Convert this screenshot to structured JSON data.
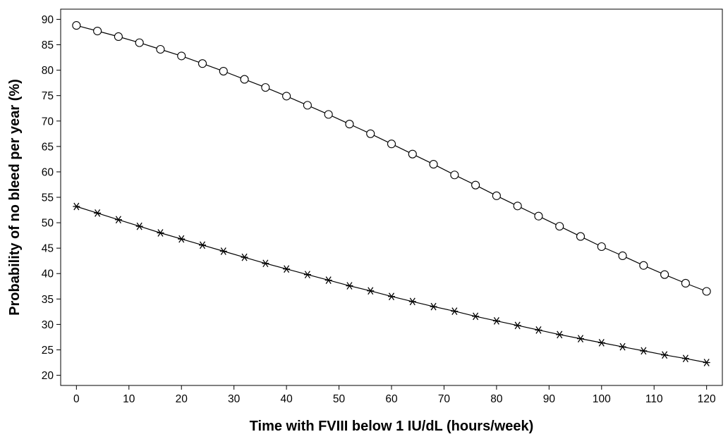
{
  "chart_data": {
    "type": "line",
    "title": "",
    "xlabel": "Time with FVIII below 1 IU/dL (hours/week)",
    "ylabel": "Probability of no bleed per year (%)",
    "xlim": [
      -3,
      123
    ],
    "ylim": [
      18,
      92
    ],
    "x_ticks": [
      0,
      10,
      20,
      30,
      40,
      50,
      60,
      70,
      80,
      90,
      100,
      110,
      120
    ],
    "y_ticks": [
      20,
      25,
      30,
      35,
      40,
      45,
      50,
      55,
      60,
      65,
      70,
      75,
      80,
      85,
      90
    ],
    "grid": false,
    "legend": "none",
    "x": [
      0,
      4,
      8,
      12,
      16,
      20,
      24,
      28,
      32,
      36,
      40,
      44,
      48,
      52,
      56,
      60,
      64,
      68,
      72,
      76,
      80,
      84,
      88,
      92,
      96,
      100,
      104,
      108,
      112,
      116,
      120
    ],
    "series": [
      {
        "marker": "circle",
        "color": "#000000",
        "values": [
          88.8,
          87.7,
          86.6,
          85.4,
          84.1,
          82.8,
          81.3,
          79.8,
          78.2,
          76.6,
          74.9,
          73.1,
          71.3,
          69.4,
          67.5,
          65.5,
          63.5,
          61.5,
          59.4,
          57.4,
          55.3,
          53.3,
          51.3,
          49.3,
          47.3,
          45.3,
          43.5,
          41.6,
          39.8,
          38.1,
          36.5
        ]
      },
      {
        "marker": "asterisk",
        "color": "#000000",
        "values": [
          53.2,
          51.9,
          50.6,
          49.3,
          48.0,
          46.8,
          45.6,
          44.4,
          43.2,
          42.0,
          40.9,
          39.8,
          38.7,
          37.6,
          36.6,
          35.5,
          34.5,
          33.5,
          32.6,
          31.6,
          30.7,
          29.8,
          28.9,
          28.0,
          27.2,
          26.4,
          25.6,
          24.8,
          24.0,
          23.3,
          22.5
        ]
      }
    ]
  }
}
